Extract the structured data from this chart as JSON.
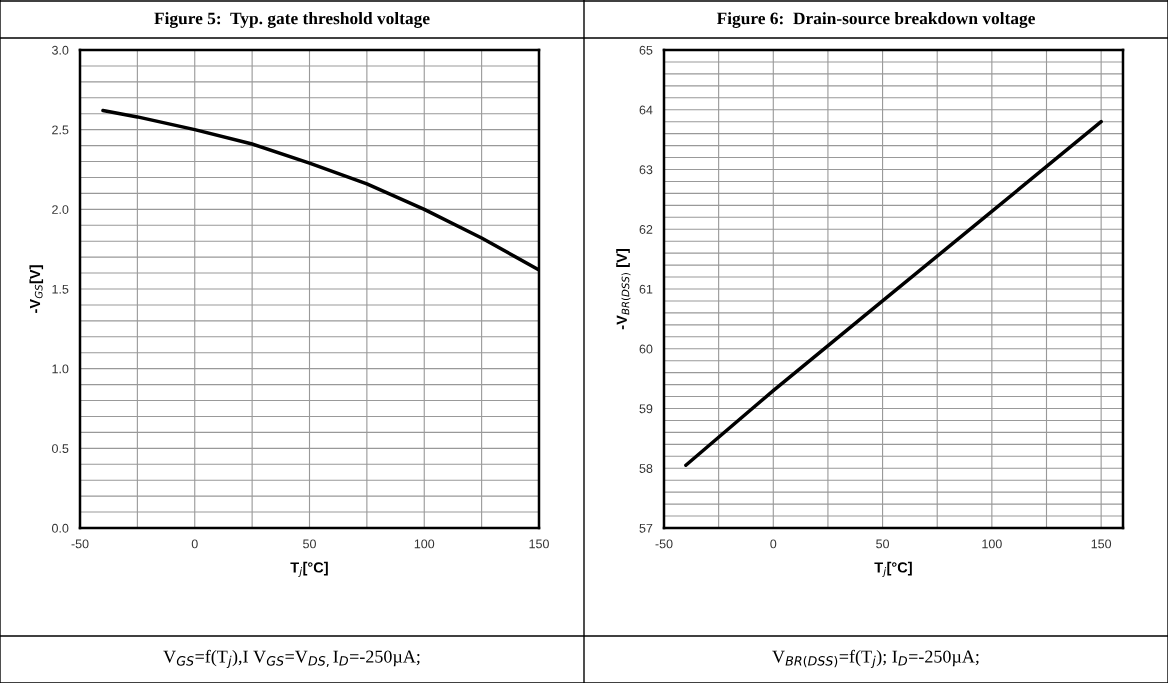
{
  "chart_data": [
    {
      "type": "line",
      "title": "Figure 5:  Typ. gate threshold voltage",
      "xlabel": "T$_{j}$[°C]",
      "ylabel": "-V$_{GS}$[V]",
      "annotations": [
        "V$_{GS}$=f(T$_{j}$),I V$_{GS}$=V$_{DS,}$I$_{D}$=-250µA;"
      ],
      "x": [
        -40,
        -25,
        0,
        25,
        50,
        75,
        100,
        125,
        150
      ],
      "series": [
        {
          "color": "#000000",
          "values": [
            2.62,
            2.58,
            2.5,
            2.41,
            2.29,
            2.16,
            2.0,
            1.82,
            1.62
          ]
        }
      ],
      "xlim": [
        -50,
        150
      ],
      "xticks": [
        -50,
        {
          "value": -25,
          "label": null
        },
        0,
        {
          "value": 25,
          "label": null
        },
        50,
        {
          "value": 75,
          "label": null
        },
        100,
        {
          "value": 125,
          "label": null
        },
        150
      ],
      "ylim": [
        0,
        3
      ],
      "yticks": [
        {
          "value": 0,
          "label": "0.0"
        },
        {
          "value": 0.1,
          "label": null
        },
        {
          "value": 0.2,
          "label": null
        },
        {
          "value": 0.3,
          "label": null
        },
        {
          "value": 0.4,
          "label": null
        },
        {
          "value": 0.5,
          "label": "0.5"
        },
        {
          "value": 0.6,
          "label": null
        },
        {
          "value": 0.7,
          "label": null
        },
        {
          "value": 0.8,
          "label": null
        },
        {
          "value": 0.9,
          "label": null
        },
        {
          "value": 1.0,
          "label": "1.0"
        },
        {
          "value": 1.1,
          "label": null
        },
        {
          "value": 1.2,
          "label": null
        },
        {
          "value": 1.3,
          "label": null
        },
        {
          "value": 1.4,
          "label": null
        },
        {
          "value": 1.5,
          "label": "1.5"
        },
        {
          "value": 1.6,
          "label": null
        },
        {
          "value": 1.7,
          "label": null
        },
        {
          "value": 1.8,
          "label": null
        },
        {
          "value": 1.9,
          "label": null
        },
        {
          "value": 2.0,
          "label": "2.0"
        },
        {
          "value": 2.1,
          "label": null
        },
        {
          "value": 2.2,
          "label": null
        },
        {
          "value": 2.3,
          "label": null
        },
        {
          "value": 2.4,
          "label": null
        },
        {
          "value": 2.5,
          "label": "2.5"
        },
        {
          "value": 2.6,
          "label": null
        },
        {
          "value": 2.7,
          "label": null
        },
        {
          "value": 2.8,
          "label": null
        },
        {
          "value": 2.9,
          "label": null
        },
        {
          "value": 3.0,
          "label": "3.0"
        }
      ],
      "grid": true,
      "marker": "none",
      "line_style": "solid"
    },
    {
      "type": "line",
      "title": "Figure 6:  Drain-source breakdown voltage",
      "xlabel": "T$_{j}$[°C]",
      "ylabel": "-V$_{BR(DSS)}$ [V]",
      "annotations": [
        "V$_{BR(DSS)}$=f(T$_{j}$); I$_{D}$=-250µA;"
      ],
      "x": [
        -40,
        0,
        50,
        100,
        150
      ],
      "series": [
        {
          "color": "#000000",
          "values": [
            58.05,
            59.3,
            60.8,
            62.3,
            63.8
          ]
        }
      ],
      "xlim": [
        -50,
        160
      ],
      "xticks": [
        -50,
        {
          "value": -25,
          "label": null
        },
        0,
        {
          "value": 25,
          "label": null
        },
        50,
        {
          "value": 75,
          "label": null
        },
        100,
        {
          "value": 125,
          "label": null
        },
        150
      ],
      "ylim": [
        57,
        65
      ],
      "yticks": [
        57,
        {
          "value": 57.2,
          "label": null
        },
        {
          "value": 57.4,
          "label": null
        },
        {
          "value": 57.6,
          "label": null
        },
        {
          "value": 57.8,
          "label": null
        },
        58,
        {
          "value": 58.2,
          "label": null
        },
        {
          "value": 58.4,
          "label": null
        },
        {
          "value": 58.6,
          "label": null
        },
        {
          "value": 58.8,
          "label": null
        },
        59,
        {
          "value": 59.2,
          "label": null
        },
        {
          "value": 59.4,
          "label": null
        },
        {
          "value": 59.6,
          "label": null
        },
        {
          "value": 59.8,
          "label": null
        },
        60,
        {
          "value": 60.2,
          "label": null
        },
        {
          "value": 60.4,
          "label": null
        },
        {
          "value": 60.6,
          "label": null
        },
        {
          "value": 60.8,
          "label": null
        },
        61,
        {
          "value": 61.2,
          "label": null
        },
        {
          "value": 61.4,
          "label": null
        },
        {
          "value": 61.6,
          "label": null
        },
        {
          "value": 61.8,
          "label": null
        },
        62,
        {
          "value": 62.2,
          "label": null
        },
        {
          "value": 62.4,
          "label": null
        },
        {
          "value": 62.6,
          "label": null
        },
        {
          "value": 62.8,
          "label": null
        },
        63,
        {
          "value": 63.2,
          "label": null
        },
        {
          "value": 63.4,
          "label": null
        },
        {
          "value": 63.6,
          "label": null
        },
        {
          "value": 63.8,
          "label": null
        },
        64,
        {
          "value": 64.2,
          "label": null
        },
        {
          "value": 64.4,
          "label": null
        },
        {
          "value": 64.6,
          "label": null
        },
        {
          "value": 64.8,
          "label": null
        },
        65
      ],
      "grid": true,
      "marker": "none",
      "line_style": "solid"
    }
  ]
}
